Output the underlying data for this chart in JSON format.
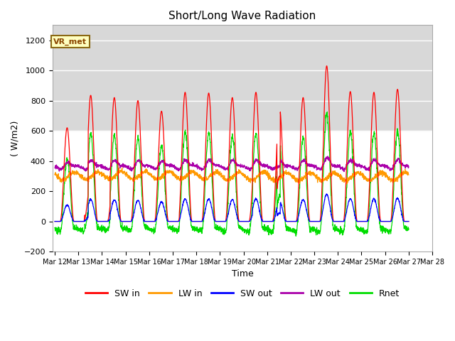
{
  "title": "Short/Long Wave Radiation",
  "xlabel": "Time",
  "ylabel": "( W/m2)",
  "ylim": [
    -200,
    1300
  ],
  "yticks": [
    -200,
    0,
    200,
    400,
    600,
    800,
    1000,
    1200
  ],
  "n_days": 15,
  "start_day": 12,
  "colors": {
    "SW_in": "#ff0000",
    "LW_in": "#ff9900",
    "SW_out": "#0000ff",
    "LW_out": "#aa00aa",
    "Rnet": "#00dd00"
  },
  "legend_labels": [
    "SW in",
    "LW in",
    "SW out",
    "LW out",
    "Rnet"
  ],
  "annotation_text": "VR_met",
  "annotation_fg": "#8b4500",
  "annotation_bg": "#ffffc0",
  "annotation_border": "#8b6914",
  "bg_color": "#ffffff",
  "shade_color": "#d8d8d8",
  "grid_color": "#cccccc",
  "points_per_day": 144,
  "sw_peaks": [
    620,
    835,
    820,
    800,
    730,
    855,
    850,
    820,
    855,
    750,
    820,
    1030,
    860,
    855,
    875
  ],
  "figsize": [
    6.4,
    4.8
  ],
  "dpi": 100
}
